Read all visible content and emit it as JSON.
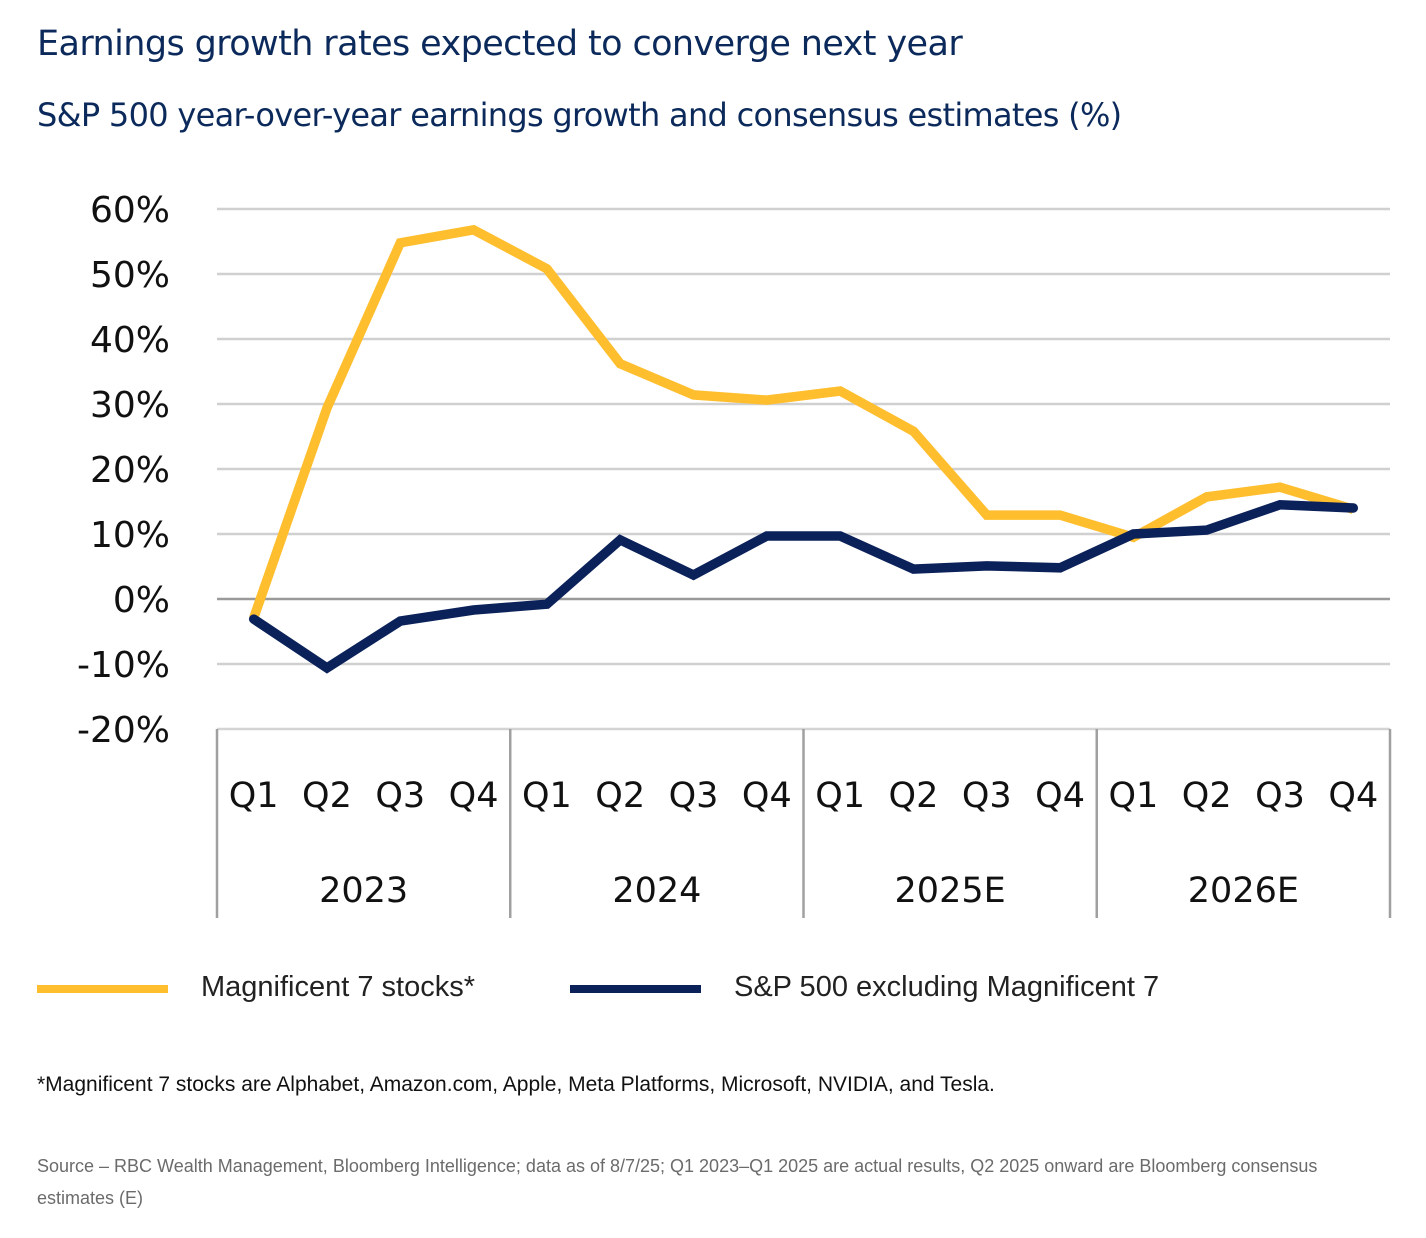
{
  "header": {
    "title": "Earnings growth rates expected to converge next year",
    "subtitle": "S&P 500 year-over-year earnings growth and consensus estimates (%)"
  },
  "colors": {
    "mag7": "#ffbe2e",
    "sp500_ex": "#0b2159",
    "grid": "#d0d0d0",
    "zero_line": "#9a9a9a",
    "title": "#0b2a5b"
  },
  "chart_data": {
    "type": "line",
    "title": "Earnings growth rates expected to converge next year",
    "subtitle": "S&P 500 year-over-year earnings growth and consensus estimates (%)",
    "xlabel": "",
    "ylabel": "",
    "ylim": [
      -20,
      60
    ],
    "yticks": [
      60,
      50,
      40,
      30,
      20,
      10,
      0,
      -10,
      -20
    ],
    "ytick_labels": [
      "60%",
      "50%",
      "40%",
      "30%",
      "20%",
      "10%",
      "0%",
      "-10%",
      "-20%"
    ],
    "grid": true,
    "legend_position": "bottom",
    "categories": [
      "Q1 2023",
      "Q2 2023",
      "Q3 2023",
      "Q4 2023",
      "Q1 2024",
      "Q2 2024",
      "Q3 2024",
      "Q4 2024",
      "Q1 2025E",
      "Q2 2025E",
      "Q3 2025E",
      "Q4 2025E",
      "Q1 2026E",
      "Q2 2026E",
      "Q3 2026E",
      "Q4 2026E"
    ],
    "quarter_labels": [
      "Q1",
      "Q2",
      "Q3",
      "Q4",
      "Q1",
      "Q2",
      "Q3",
      "Q4",
      "Q1",
      "Q2",
      "Q3",
      "Q4",
      "Q1",
      "Q2",
      "Q3",
      "Q4"
    ],
    "year_groups": [
      {
        "label": "2023",
        "count": 4
      },
      {
        "label": "2024",
        "count": 4
      },
      {
        "label": "2025E",
        "count": 4
      },
      {
        "label": "2026E",
        "count": 4
      }
    ],
    "series": [
      {
        "name": "Magnificent 7 stocks*",
        "color": "#ffbe2e",
        "values": [
          -2.9,
          29.4,
          54.8,
          56.8,
          50.8,
          36.2,
          31.4,
          30.6,
          32.0,
          25.8,
          12.9,
          12.9,
          9.5,
          15.7,
          17.2,
          13.8
        ]
      },
      {
        "name": "S&P 500 excluding Magnificent 7",
        "color": "#0b2159",
        "values": [
          -3.1,
          -10.6,
          -3.4,
          -1.7,
          -0.8,
          9.1,
          3.7,
          9.7,
          9.7,
          4.6,
          5.1,
          4.8,
          10.0,
          10.6,
          14.5,
          14.0
        ]
      }
    ]
  },
  "legend": {
    "items": [
      {
        "label": "Magnificent 7 stocks*"
      },
      {
        "label": "S&P 500 excluding Magnificent 7"
      }
    ]
  },
  "footnote": "*Magnificent 7 stocks are Alphabet, Amazon.com, Apple, Meta Platforms, Microsoft, NVIDIA, and Tesla.",
  "source": "Source – RBC Wealth Management, Bloomberg Intelligence; data as of 8/7/25; Q1 2023–Q1 2025 are actual results, Q2 2025 onward are Bloomberg consensus estimates (E)"
}
